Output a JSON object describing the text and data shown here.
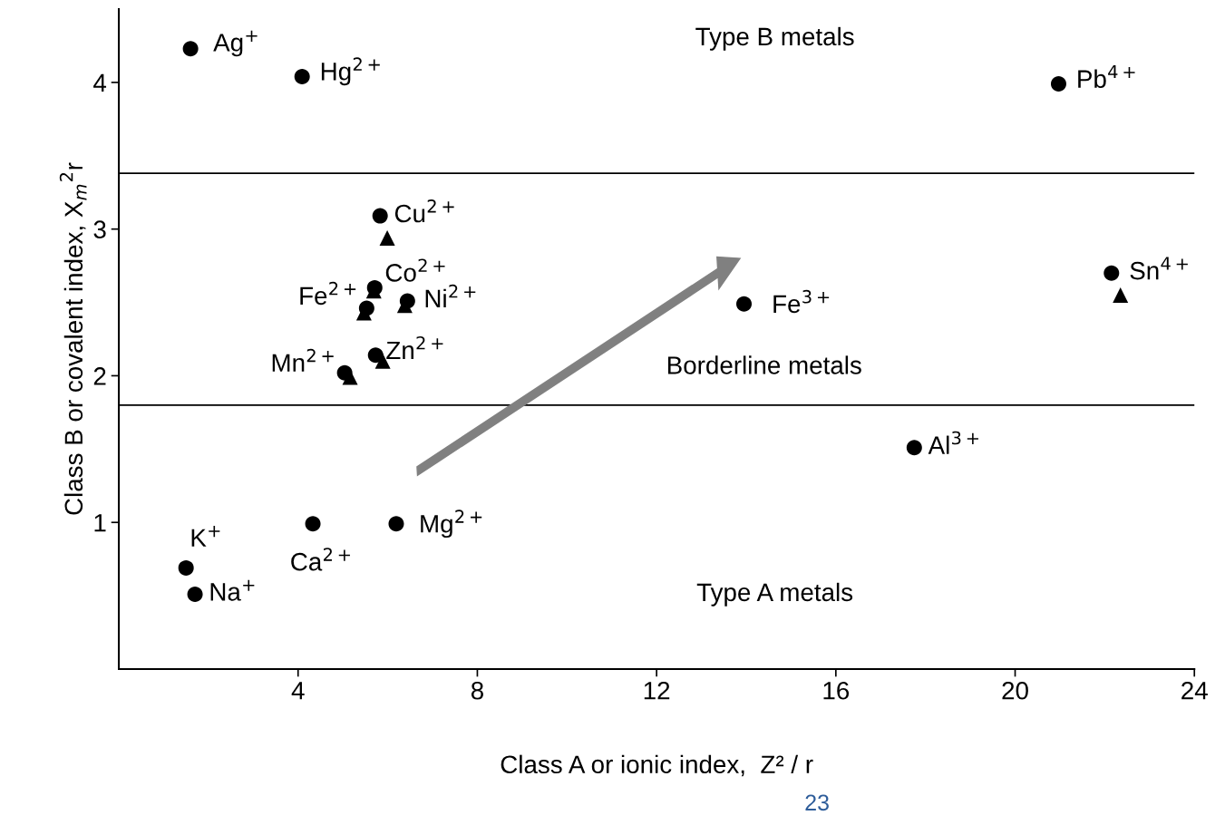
{
  "chart_data": {
    "type": "scatter",
    "xlabel": "Class A or ionic index,  Z² / r",
    "ylabel": "Class B or covalent index, X$_{m}$$^{2}$r",
    "xlim": [
      0,
      24
    ],
    "ylim": [
      0,
      4.5
    ],
    "xticks": [
      4,
      8,
      12,
      16,
      20,
      24
    ],
    "yticks": [
      1,
      2,
      3,
      4
    ],
    "grid": false,
    "legend": false,
    "series": [
      {
        "color": "#000000",
        "marker": "circle",
        "x": [
          1.6,
          4.09,
          20.97,
          5.83,
          5.71,
          5.53,
          6.44,
          5.73,
          5.04,
          13.95,
          22.15,
          17.75,
          4.33,
          6.19,
          1.5,
          1.7
        ],
        "values": [
          4.23,
          4.04,
          3.99,
          3.09,
          2.6,
          2.46,
          2.51,
          2.14,
          2.02,
          2.49,
          2.7,
          1.51,
          0.99,
          0.99,
          0.69,
          0.51
        ],
        "value_labels": [
          "Ag$^{+}$",
          "Hg$^{2+}$",
          "Pb$^{4+}$",
          "Cu$^{2+}$",
          "Co$^{2+}$",
          "Fe$^{2+}$",
          "Ni$^{2+}$",
          "Zn$^{2+}$",
          "Mn$^{2+}$",
          "Fe$^{3+}$",
          "Sn$^{4+}$",
          "Al$^{3+}$",
          "Ca$^{2+}$",
          "Mg$^{2+}$",
          "K$^{+}$",
          "Na$^{+}$"
        ]
      },
      {
        "color": "#000000",
        "marker": "triangle",
        "x": [
          5.99,
          5.69,
          5.47,
          6.38,
          5.89,
          5.16,
          22.35
        ],
        "values": [
          2.94,
          2.58,
          2.43,
          2.48,
          2.1,
          1.99,
          2.55
        ]
      }
    ],
    "ref_lines": [
      {
        "axis": "y",
        "value": 3.38,
        "color": "#000000"
      },
      {
        "axis": "y",
        "value": 1.8,
        "color": "#000000"
      }
    ],
    "annotations": [
      "Type B metals",
      "Borderline metals",
      "Type A metals",
      "23"
    ]
  }
}
